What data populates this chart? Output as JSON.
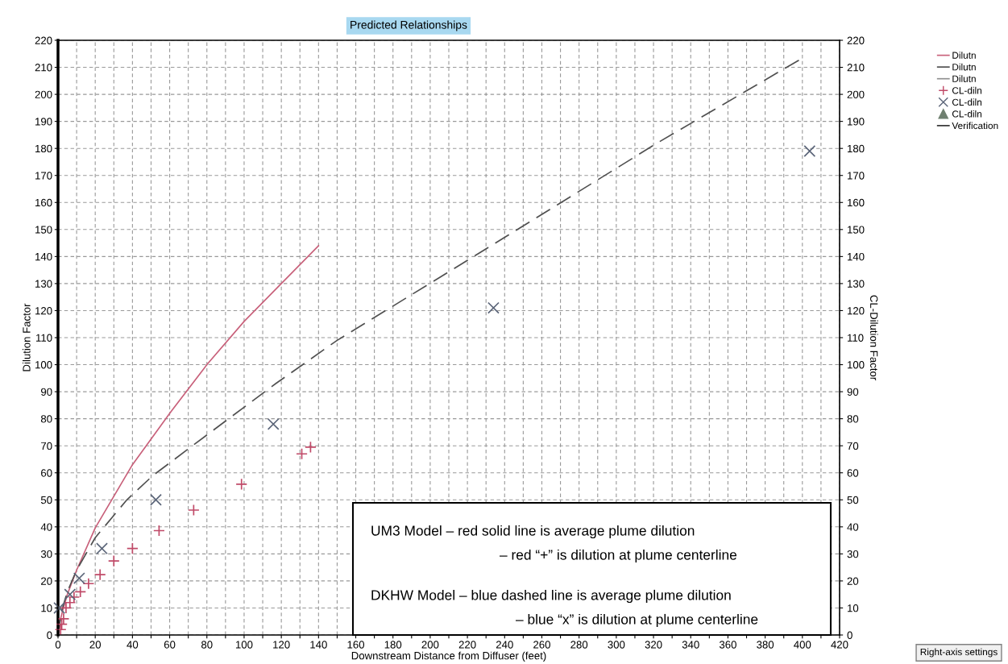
{
  "chart_data": {
    "type": "line",
    "title": "Predicted Relationships",
    "xlabel": "Downstream Distance from Diffuser (feet)",
    "ylabel": "Dilution Factor",
    "y2label": "CL-Dilution Factor",
    "xlim": [
      0,
      420
    ],
    "xticks": [
      0,
      {
        "value": 10,
        "label": null
      },
      20,
      {
        "value": 30,
        "label": null
      },
      40,
      {
        "value": 50,
        "label": null
      },
      60,
      {
        "value": 70,
        "label": null
      },
      80,
      {
        "value": 90,
        "label": null
      },
      100,
      {
        "value": 110,
        "label": null
      },
      120,
      {
        "value": 130,
        "label": null
      },
      140,
      {
        "value": 150,
        "label": null
      },
      160,
      {
        "value": 170,
        "label": null
      },
      180,
      {
        "value": 190,
        "label": null
      },
      200,
      {
        "value": 210,
        "label": null
      },
      220,
      {
        "value": 230,
        "label": null
      },
      240,
      {
        "value": 250,
        "label": null
      },
      260,
      {
        "value": 270,
        "label": null
      },
      280,
      {
        "value": 290,
        "label": null
      },
      300,
      {
        "value": 310,
        "label": null
      },
      320,
      {
        "value": 330,
        "label": null
      },
      340,
      {
        "value": 350,
        "label": null
      },
      360,
      {
        "value": 370,
        "label": null
      },
      380,
      {
        "value": 390,
        "label": null
      },
      400,
      {
        "value": 410,
        "label": null
      },
      420
    ],
    "ylim": [
      0,
      220
    ],
    "yticks": [
      0,
      10,
      20,
      30,
      40,
      50,
      60,
      70,
      80,
      90,
      100,
      110,
      120,
      130,
      140,
      150,
      160,
      170,
      180,
      190,
      200,
      210,
      220
    ],
    "y2lim": [
      0,
      220
    ],
    "y2ticks": [
      0,
      10,
      20,
      30,
      40,
      50,
      60,
      70,
      80,
      90,
      100,
      110,
      120,
      130,
      140,
      150,
      160,
      170,
      180,
      190,
      200,
      210,
      220
    ],
    "grid": true,
    "legend": "top right",
    "series": [
      {
        "name": "Dilutn",
        "color": "#c8607a",
        "line_style": "solid",
        "x": [
          0,
          1,
          2.5,
          5,
          10,
          20,
          40,
          60,
          80,
          100,
          120,
          140
        ],
        "values": [
          0,
          5,
          9,
          15,
          24,
          39.6,
          63,
          82,
          100,
          116,
          130,
          144
        ]
      },
      {
        "name": "Dilutn",
        "color": "#505050",
        "line_style": "dashed",
        "x": [
          0,
          2,
          5,
          10,
          20,
          37,
          51,
          80,
          117,
          150,
          221,
          322,
          399
        ],
        "values": [
          0,
          9,
          16,
          24,
          36,
          50,
          59,
          74,
          93,
          109,
          139,
          182,
          213
        ]
      },
      {
        "name": "Dilutn",
        "color": "#909090",
        "line_style": "solid"
      },
      {
        "name": "CL-diln",
        "type": "scatter",
        "color": "#c04a68",
        "marker": "plus",
        "x": [
          1.4,
          2,
          3,
          4.3,
          6.4,
          8.6,
          12,
          16.4,
          22.6,
          30,
          40,
          54.3,
          72.9,
          98.6,
          131,
          135.7
        ],
        "values": [
          2,
          4,
          6,
          10,
          12,
          14,
          16,
          19,
          22.3,
          27.4,
          32,
          38.6,
          46.2,
          55.8,
          67,
          69.5
        ]
      },
      {
        "name": "CL-diln",
        "type": "scatter",
        "color": "#5a6478",
        "marker": "cross",
        "x": [
          0.7,
          6.4,
          11.4,
          23.6,
          52.6,
          115.7,
          234,
          403.9
        ],
        "values": [
          10,
          15,
          21,
          32,
          50,
          78,
          121,
          179
        ]
      },
      {
        "name": "CL-diln",
        "type": "scatter",
        "color": "#6f8070",
        "marker": "triangle"
      },
      {
        "name": "Verification",
        "color": "#303030",
        "line_style": "solid"
      }
    ],
    "annotations": [
      "UM3 Model – red solid line is average plume dilution",
      "– red “+” is dilution at plume centerline",
      "DKHW Model – blue dashed line is average plume dilution",
      "– blue “x” is dilution at plume centerline",
      "Right-axis settings"
    ]
  }
}
